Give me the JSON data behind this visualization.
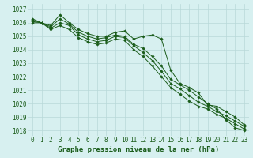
{
  "x": [
    0,
    1,
    2,
    3,
    4,
    5,
    6,
    7,
    8,
    9,
    10,
    11,
    12,
    13,
    14,
    15,
    16,
    17,
    18,
    19,
    20,
    21,
    22,
    23
  ],
  "series": [
    [
      1026.0,
      1026.0,
      1025.8,
      1026.6,
      1026.0,
      1025.5,
      1025.2,
      1025.0,
      1025.0,
      1025.3,
      1025.4,
      1024.8,
      1025.0,
      1025.1,
      1024.8,
      1022.5,
      1021.5,
      1021.2,
      1020.8,
      1019.9,
      1019.8,
      1019.4,
      1019.0,
      1018.4
    ],
    [
      1026.1,
      1026.0,
      1025.7,
      1026.3,
      1025.9,
      1025.3,
      1025.0,
      1024.8,
      1024.9,
      1025.1,
      1025.0,
      1024.4,
      1024.1,
      1023.5,
      1022.8,
      1021.8,
      1021.4,
      1021.0,
      1020.5,
      1020.0,
      1019.6,
      1018.8,
      1018.2,
      1018.0
    ],
    [
      1026.2,
      1026.0,
      1025.6,
      1026.0,
      1025.8,
      1025.1,
      1024.8,
      1024.6,
      1024.7,
      1025.0,
      1024.9,
      1024.3,
      1023.8,
      1023.2,
      1022.4,
      1021.5,
      1021.1,
      1020.6,
      1020.1,
      1019.8,
      1019.4,
      1019.1,
      1018.7,
      1018.3
    ],
    [
      1026.3,
      1026.0,
      1025.5,
      1025.8,
      1025.5,
      1024.9,
      1024.6,
      1024.4,
      1024.5,
      1024.8,
      1024.7,
      1024.0,
      1023.5,
      1022.8,
      1022.0,
      1021.2,
      1020.7,
      1020.2,
      1019.8,
      1019.6,
      1019.2,
      1018.9,
      1018.5,
      1018.1
    ]
  ],
  "line_color": "#1a5c1a",
  "marker": "D",
  "markersize": 1.8,
  "background_color": "#d7f0f0",
  "grid_color": "#b8d8d8",
  "ylabel_values": [
    1018,
    1019,
    1020,
    1021,
    1022,
    1023,
    1024,
    1025,
    1026,
    1027
  ],
  "xlabel": "Graphe pression niveau de la mer (hPa)",
  "ylim": [
    1017.6,
    1027.4
  ],
  "xlim": [
    -0.5,
    23.5
  ],
  "xlabel_fontsize": 6.5,
  "tick_fontsize": 5.5,
  "linewidth": 0.7
}
